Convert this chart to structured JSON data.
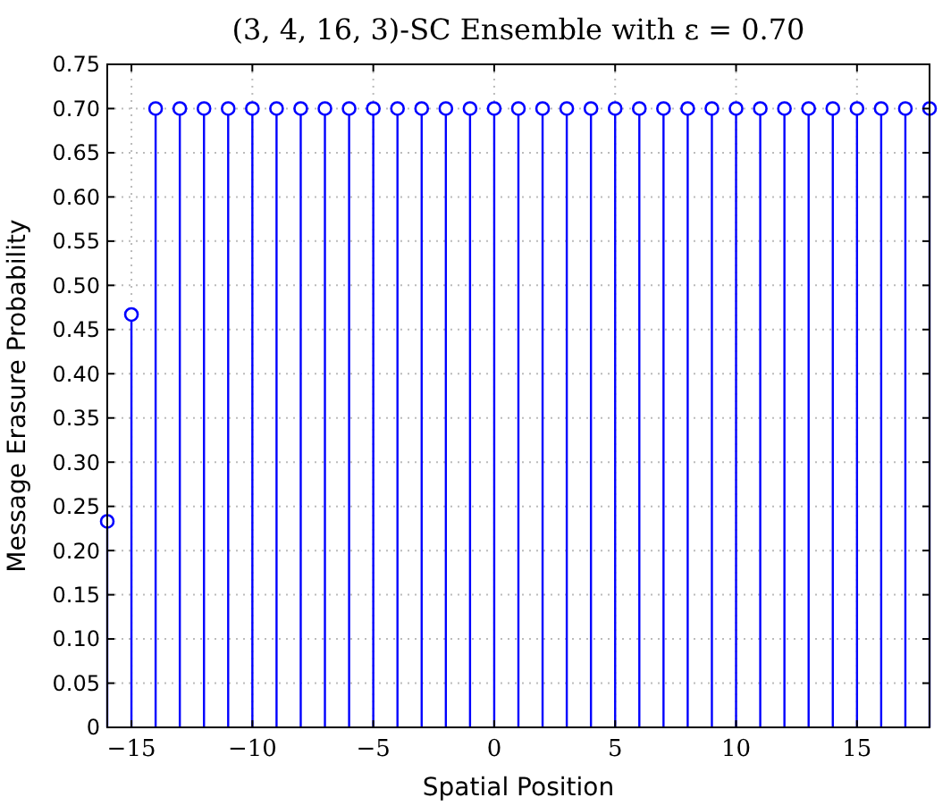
{
  "chart_data": {
    "type": "lollipop",
    "title": "(3, 4, 16, 3)-SC Ensemble with ε = 0.70",
    "xlabel": "Spatial Position",
    "ylabel": "Message Erasure Probability",
    "x": [
      -16,
      -15,
      -14,
      -13,
      -12,
      -11,
      -10,
      -9,
      -8,
      -7,
      -6,
      -5,
      -4,
      -3,
      -2,
      -1,
      0,
      1,
      2,
      3,
      4,
      5,
      6,
      7,
      8,
      9,
      10,
      11,
      12,
      13,
      14,
      15,
      16,
      17,
      18
    ],
    "values": [
      0.233,
      0.467,
      0.7,
      0.7,
      0.7,
      0.7,
      0.7,
      0.7,
      0.7,
      0.7,
      0.7,
      0.7,
      0.7,
      0.7,
      0.7,
      0.7,
      0.7,
      0.7,
      0.7,
      0.7,
      0.7,
      0.7,
      0.7,
      0.7,
      0.7,
      0.7,
      0.7,
      0.7,
      0.7,
      0.7,
      0.7,
      0.7,
      0.7,
      0.7,
      0.7
    ],
    "color": "#0000ff",
    "marker": "circle",
    "grid": true,
    "xlim": [
      -16,
      18
    ],
    "xticks": [
      {
        "value": -15,
        "label": "−15"
      },
      {
        "value": -10,
        "label": "−10"
      },
      {
        "value": -5,
        "label": "−5"
      },
      0,
      5,
      10,
      15
    ],
    "ylim": [
      0,
      0.75
    ],
    "yticks": [
      0,
      {
        "value": 0.05,
        "label": "0.05"
      },
      {
        "value": 0.1,
        "label": "0.10"
      },
      {
        "value": 0.15,
        "label": "0.15"
      },
      {
        "value": 0.2,
        "label": "0.20"
      },
      {
        "value": 0.25,
        "label": "0.25"
      },
      {
        "value": 0.3,
        "label": "0.30"
      },
      {
        "value": 0.35,
        "label": "0.35"
      },
      {
        "value": 0.4,
        "label": "0.40"
      },
      {
        "value": 0.45,
        "label": "0.45"
      },
      {
        "value": 0.5,
        "label": "0.50"
      },
      {
        "value": 0.55,
        "label": "0.55"
      },
      {
        "value": 0.6,
        "label": "0.60"
      },
      {
        "value": 0.65,
        "label": "0.65"
      },
      {
        "value": 0.7,
        "label": "0.70"
      },
      {
        "value": 0.75,
        "label": "0.75"
      }
    ]
  }
}
